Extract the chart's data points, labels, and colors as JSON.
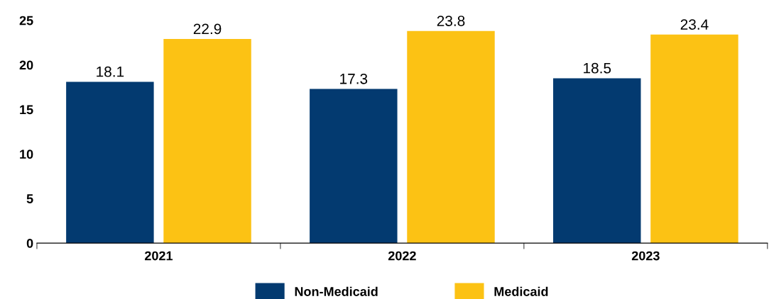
{
  "chart_data": {
    "type": "bar",
    "categories": [
      "2021",
      "2022",
      "2023"
    ],
    "series": [
      {
        "name": "Non-Medicaid",
        "color": "#033a70",
        "values": [
          18.1,
          17.3,
          18.5
        ]
      },
      {
        "name": "Medicaid",
        "color": "#fcc214",
        "values": [
          22.9,
          23.8,
          23.4
        ]
      }
    ],
    "ylim": [
      0,
      25
    ],
    "yticks": [
      0,
      5,
      10,
      15,
      20,
      25
    ],
    "grid": false,
    "legend": "bottom",
    "data_labels": true
  }
}
